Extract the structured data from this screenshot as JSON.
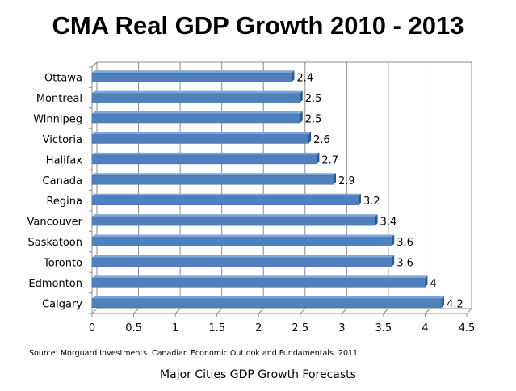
{
  "title": "CMA Real GDP Growth 2010 - 2013",
  "source": "Source: Morguard Investments. Canadian Economic Outlook and Fundamentals. 2011.",
  "subtitle": "Major Cities GDP Growth Forecasts",
  "colors": {
    "bar": "#4f81bd",
    "bar_dark": "#2f5597",
    "grid": "#8c8c8c"
  },
  "chart_data": {
    "type": "bar",
    "orientation": "horizontal",
    "categories": [
      "Ottawa",
      "Montreal",
      "Winnipeg",
      "Victoria",
      "Halifax",
      "Canada",
      "Regina",
      "Vancouver",
      "Saskatoon",
      "Toronto",
      "Edmonton",
      "Calgary"
    ],
    "values": [
      2.4,
      2.5,
      2.5,
      2.6,
      2.7,
      2.9,
      3.2,
      3.4,
      3.6,
      3.6,
      4,
      4.2
    ],
    "data_labels": [
      "2.4",
      "2.5",
      "2.5",
      "2.6",
      "2.7",
      "2.9",
      "3.2",
      "3.4",
      "3.6",
      "3.6",
      "4",
      "4.2"
    ],
    "xticks": [
      "0",
      "0.5",
      "1",
      "1.5",
      "2",
      "2.5",
      "3",
      "3.5",
      "4",
      "4.5"
    ],
    "xlim": [
      0,
      4.5
    ],
    "grid": true,
    "legend": "none"
  }
}
